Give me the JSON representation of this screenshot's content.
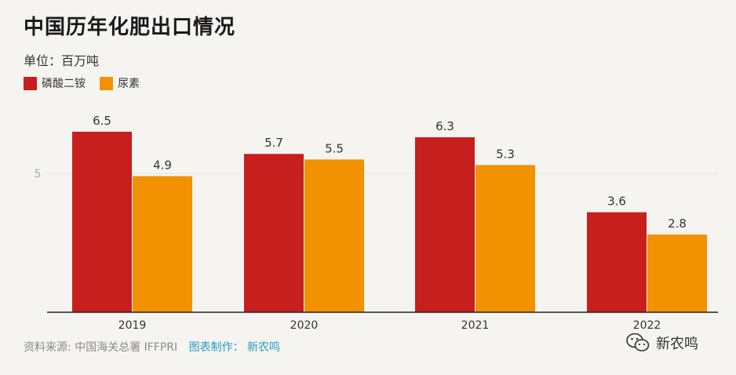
{
  "title": "中国历年化肥出口情况",
  "subtitle": "单位：百万吨",
  "colors": {
    "dap": "#c71e1e",
    "urea": "#f39200",
    "axis": "#222222",
    "tick": "#aaaaaa",
    "grid": "#e6e3dd"
  },
  "chart_data": {
    "type": "bar",
    "categories": [
      "2019",
      "2020",
      "2021",
      "2022"
    ],
    "series": [
      {
        "name": "磷酸二铵",
        "values": [
          6.5,
          5.7,
          6.3,
          3.6
        ]
      },
      {
        "name": "尿素",
        "values": [
          4.9,
          5.5,
          5.3,
          2.8
        ]
      }
    ],
    "value_labels": [
      [
        "6.5",
        "5.7",
        "6.3",
        "3.6"
      ],
      [
        "4.9",
        "5.5",
        "5.3",
        "2.8"
      ]
    ],
    "yticks": [
      "5"
    ],
    "ylim": [
      0,
      7
    ],
    "legend": "top-left",
    "grid": true
  },
  "footer": {
    "source": "资料来源: 中国海关总署 IFFPRI",
    "credit": "图表制作： 新农鸣"
  },
  "watermark": {
    "icon": "wechat-icon",
    "text": "新农鸣"
  }
}
